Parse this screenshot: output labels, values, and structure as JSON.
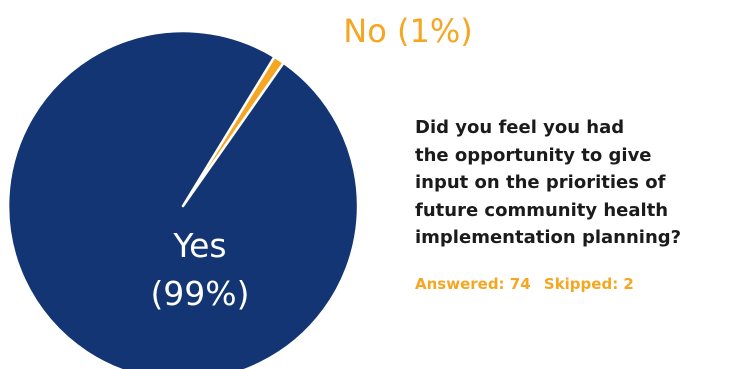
{
  "chart_data": {
    "type": "pie",
    "slices": [
      {
        "name": "Yes",
        "value": 99,
        "label_line1": "Yes",
        "label_line2": "(99%)",
        "color": "#143574"
      },
      {
        "name": "No",
        "value": 1,
        "label_line1": "No (1%)",
        "label_line2": "",
        "color": "#f5a623"
      }
    ],
    "legend": "none"
  },
  "question": {
    "lines": [
      "Did you feel you had",
      "the opportunity to give",
      "input on the priorities of",
      "future community health",
      "implementation planning?"
    ],
    "color": "#1b1b1b"
  },
  "stats": {
    "answered": "Answered: 74",
    "skipped": "Skipped: 2",
    "color": "#f5a623"
  }
}
